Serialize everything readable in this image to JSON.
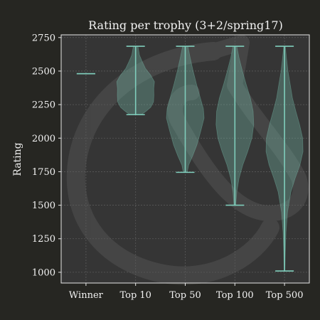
{
  "chart_data": {
    "type": "violin",
    "title": "Rating per trophy (3+2/spring17)",
    "xlabel": "",
    "ylabel": "Rating",
    "ylim": [
      920,
      2770
    ],
    "yticks": [
      1000,
      1250,
      1500,
      1750,
      2000,
      2250,
      2500,
      2750
    ],
    "grid": true,
    "background_watermark": "lichess-logo",
    "colors": {
      "background": "#262622",
      "plot_area": "#353535",
      "violin_fill": "#7fcdbb",
      "violin_edge": "#7fcdbb",
      "grid": "#5a5a5a",
      "axes": "#e6e6e6",
      "text": "#f2f2f2"
    },
    "categories": [
      {
        "name": "Winner",
        "min": 2480,
        "max": 2480,
        "density": []
      },
      {
        "name": "Top 10",
        "min": 2175,
        "max": 2685,
        "density": [
          [
            2175,
            0.3
          ],
          [
            2200,
            0.55
          ],
          [
            2230,
            0.8
          ],
          [
            2270,
            0.95
          ],
          [
            2320,
            0.97
          ],
          [
            2370,
            0.96
          ],
          [
            2420,
            1.0
          ],
          [
            2470,
            0.8
          ],
          [
            2520,
            0.52
          ],
          [
            2570,
            0.35
          ],
          [
            2620,
            0.2
          ],
          [
            2685,
            0.12
          ]
        ]
      },
      {
        "name": "Top 50",
        "min": 1745,
        "max": 2685,
        "density": [
          [
            1745,
            0.1
          ],
          [
            1800,
            0.18
          ],
          [
            1870,
            0.4
          ],
          [
            1950,
            0.62
          ],
          [
            2050,
            0.82
          ],
          [
            2150,
            1.0
          ],
          [
            2220,
            0.96
          ],
          [
            2300,
            0.8
          ],
          [
            2400,
            0.6
          ],
          [
            2500,
            0.42
          ],
          [
            2600,
            0.26
          ],
          [
            2685,
            0.14
          ]
        ]
      },
      {
        "name": "Top 100",
        "min": 1500,
        "max": 2685,
        "density": [
          [
            1500,
            0.05
          ],
          [
            1600,
            0.1
          ],
          [
            1700,
            0.22
          ],
          [
            1800,
            0.42
          ],
          [
            1900,
            0.68
          ],
          [
            2000,
            0.9
          ],
          [
            2100,
            1.0
          ],
          [
            2200,
            0.97
          ],
          [
            2300,
            0.82
          ],
          [
            2400,
            0.6
          ],
          [
            2500,
            0.4
          ],
          [
            2600,
            0.22
          ],
          [
            2685,
            0.1
          ]
        ]
      },
      {
        "name": "Top 500",
        "min": 1010,
        "max": 2685,
        "density": [
          [
            1010,
            0.02
          ],
          [
            1150,
            0.04
          ],
          [
            1300,
            0.08
          ],
          [
            1450,
            0.16
          ],
          [
            1600,
            0.34
          ],
          [
            1700,
            0.56
          ],
          [
            1800,
            0.82
          ],
          [
            1900,
            0.98
          ],
          [
            2000,
            0.96
          ],
          [
            2100,
            0.8
          ],
          [
            2200,
            0.6
          ],
          [
            2300,
            0.42
          ],
          [
            2400,
            0.3
          ],
          [
            2500,
            0.18
          ],
          [
            2600,
            0.1
          ],
          [
            2685,
            0.04
          ]
        ]
      }
    ]
  }
}
